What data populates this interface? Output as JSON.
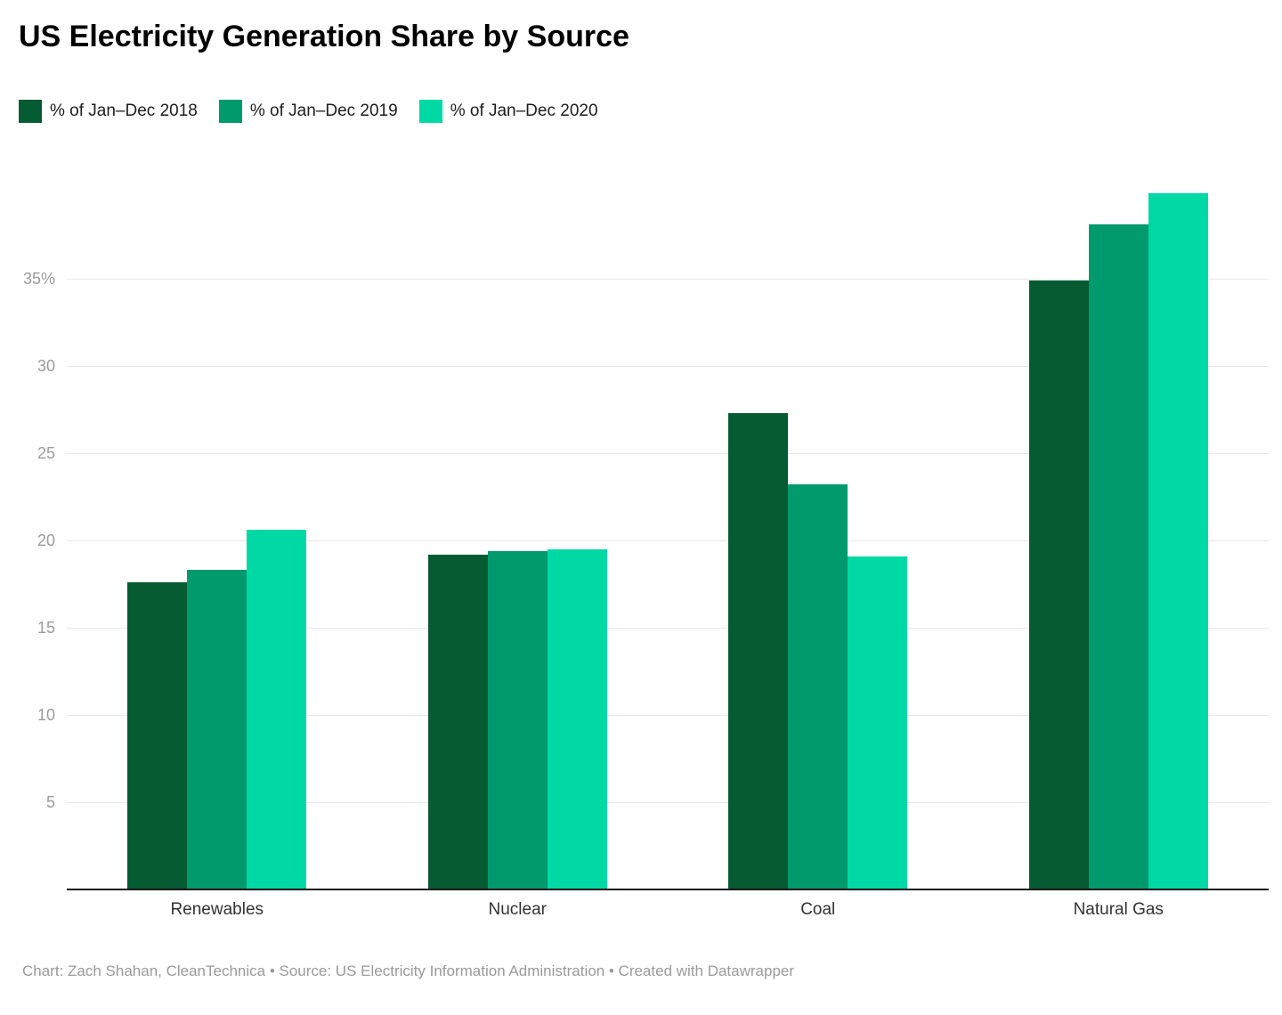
{
  "title": "US Electricity Generation Share by Source",
  "footer": "Chart: Zach Shahan, CleanTechnica • Source: US Electricity Information Administration • Created with Datawrapper",
  "chart_data": {
    "type": "bar",
    "title": "US Electricity Generation Share by Source",
    "xlabel": "",
    "ylabel": "",
    "categories": [
      "Renewables",
      "Nuclear",
      "Coal",
      "Natural Gas"
    ],
    "series": [
      {
        "name": "% of Jan–Dec 2018",
        "color": "#065b32",
        "values": [
          17.6,
          19.2,
          27.3,
          34.9
        ]
      },
      {
        "name": "% of Jan–Dec 2019",
        "color": "#009a6c",
        "values": [
          18.3,
          19.4,
          23.2,
          38.1
        ]
      },
      {
        "name": "% of Jan–Dec 2020",
        "color": "#00d9a4",
        "values": [
          20.6,
          19.5,
          19.1,
          39.9
        ]
      }
    ],
    "ylim": [
      0,
      40
    ],
    "yticks": [
      5,
      10,
      15,
      20,
      25,
      30,
      35
    ],
    "ytick_labels": [
      "5",
      "10",
      "15",
      "20",
      "25",
      "30",
      "35%"
    ],
    "grid": "horizontal",
    "legend_position": "top-left"
  },
  "colors": {
    "grid": "#e8e8e8",
    "axis": "#191919",
    "tick_label": "#9b9b9b",
    "category_label": "#333333",
    "footer_text": "#9a9a9a",
    "title_text": "#000000"
  }
}
